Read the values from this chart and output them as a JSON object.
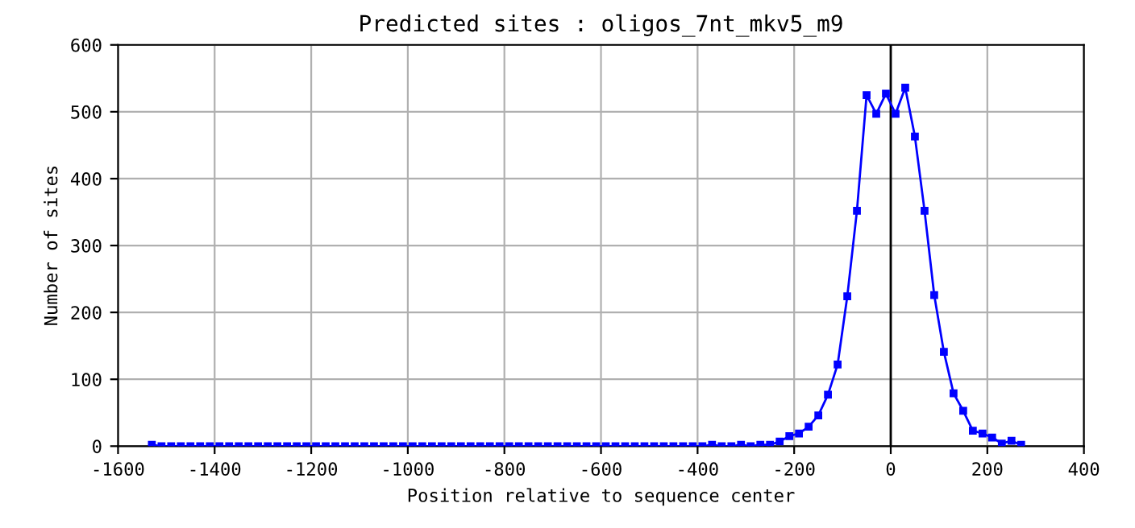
{
  "chart_data": {
    "type": "line",
    "title": "Predicted sites : oligos_7nt_mkv5_m9",
    "xlabel": "Position relative to sequence center",
    "ylabel": "Number of sites",
    "x": [
      -1530,
      -1510,
      -1490,
      -1470,
      -1450,
      -1430,
      -1410,
      -1390,
      -1370,
      -1350,
      -1330,
      -1310,
      -1290,
      -1270,
      -1250,
      -1230,
      -1210,
      -1190,
      -1170,
      -1150,
      -1130,
      -1110,
      -1090,
      -1070,
      -1050,
      -1030,
      -1010,
      -990,
      -970,
      -950,
      -930,
      -910,
      -890,
      -870,
      -850,
      -830,
      -810,
      -790,
      -770,
      -750,
      -730,
      -710,
      -690,
      -670,
      -650,
      -630,
      -610,
      -590,
      -570,
      -550,
      -530,
      -510,
      -490,
      -470,
      -450,
      -430,
      -410,
      -390,
      -370,
      -350,
      -330,
      -310,
      -290,
      -270,
      -250,
      -230,
      -210,
      -190,
      -170,
      -150,
      -130,
      -110,
      -90,
      -70,
      -50,
      -30,
      -10,
      10,
      30,
      50,
      70,
      90,
      110,
      130,
      150,
      170,
      190,
      210,
      230,
      250,
      270
    ],
    "series": [
      {
        "color": "#0000ff",
        "values": [
          2,
          0,
          0,
          0,
          0,
          0,
          0,
          0,
          0,
          0,
          0,
          0,
          0,
          0,
          0,
          0,
          0,
          0,
          0,
          0,
          0,
          0,
          0,
          0,
          0,
          0,
          0,
          0,
          0,
          0,
          0,
          0,
          0,
          0,
          0,
          0,
          0,
          0,
          0,
          0,
          0,
          0,
          0,
          0,
          0,
          0,
          0,
          0,
          0,
          0,
          0,
          0,
          0,
          0,
          0,
          0,
          0,
          0,
          2,
          0,
          0,
          2,
          0,
          2,
          2,
          7,
          15,
          19,
          29,
          46,
          77,
          122,
          224,
          352,
          525,
          497,
          527,
          497,
          536,
          463,
          352,
          226,
          141,
          79,
          53,
          23,
          19,
          13,
          4,
          8,
          2
        ]
      }
    ],
    "xlim": [
      -1600,
      400
    ],
    "xticks": [
      -1600,
      -1400,
      -1200,
      -1000,
      -800,
      -600,
      -400,
      -200,
      0,
      200,
      400
    ],
    "ylim": [
      0,
      600
    ],
    "yticks": [
      0,
      100,
      200,
      300,
      400,
      500,
      600
    ],
    "grid": true,
    "marker": "square",
    "line_style": "solid",
    "ref_lines": [
      {
        "axis": "x",
        "value": 0,
        "color": "#000000"
      }
    ]
  }
}
